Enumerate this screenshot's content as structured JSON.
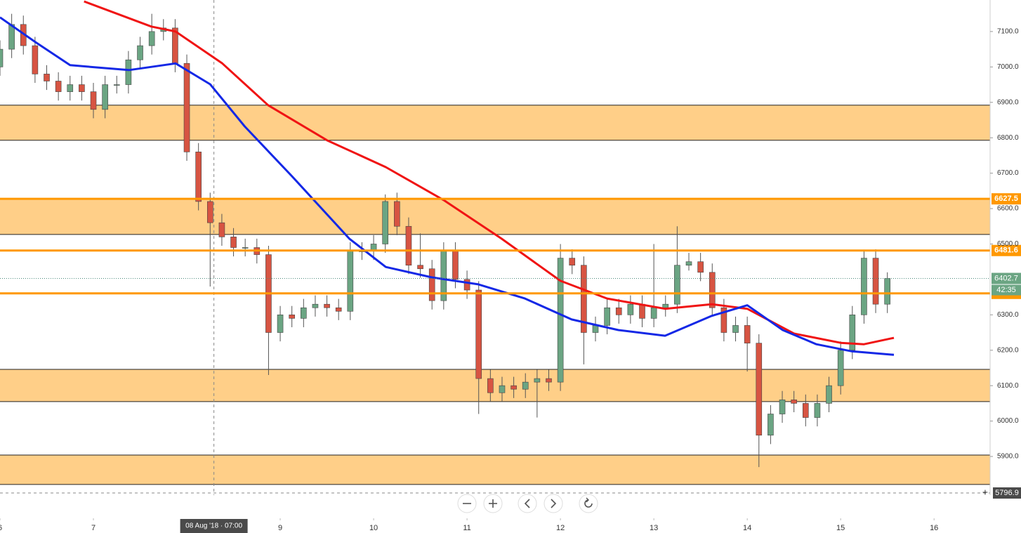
{
  "chart_data": {
    "type": "candlestick",
    "x": [
      6,
      6.125,
      6.25,
      6.375,
      6.5,
      6.625,
      6.75,
      6.875,
      7,
      7.125,
      7.25,
      7.375,
      7.5,
      7.625,
      7.75,
      7.875,
      8,
      8.125,
      8.25,
      8.375,
      8.5,
      8.625,
      8.75,
      8.875,
      9,
      9.125,
      9.25,
      9.375,
      9.5,
      9.625,
      9.75,
      9.875,
      10,
      10.125,
      10.25,
      10.375,
      10.5,
      10.625,
      10.75,
      10.875,
      11,
      11.125,
      11.25,
      11.375,
      11.5,
      11.625,
      11.75,
      11.875,
      12,
      12.125,
      12.25,
      12.375,
      12.5,
      12.625,
      12.75,
      12.875,
      13,
      13.125,
      13.25,
      13.375,
      13.5,
      13.625,
      13.75,
      13.875,
      14,
      14.125,
      14.25,
      14.375,
      14.5,
      14.625,
      14.75,
      14.875,
      15,
      15.125,
      15.25,
      15.375,
      15.5
    ],
    "open": [
      7000,
      7050,
      7120,
      7060,
      6980,
      6960,
      6930,
      6950,
      6930,
      6880,
      6950,
      6950,
      7020,
      7060,
      7100,
      7110,
      7010,
      6760,
      6620,
      6560,
      6520,
      6490,
      6490,
      6470,
      6250,
      6300,
      6290,
      6320,
      6330,
      6320,
      6310,
      6480,
      6480,
      6500,
      6620,
      6550,
      6440,
      6430,
      6340,
      6480,
      6400,
      6370,
      6120,
      6080,
      6100,
      6090,
      6110,
      6120,
      6110,
      6460,
      6440,
      6250,
      6270,
      6320,
      6300,
      6330,
      6290,
      6320,
      6330,
      6440,
      6450,
      6420,
      6320,
      6250,
      6270,
      6220,
      5960,
      6020,
      6060,
      6050,
      6010,
      6050,
      6100,
      6200,
      6300,
      6460,
      6330
    ],
    "high": [
      7075,
      7150,
      7145,
      7085,
      7005,
      6985,
      6975,
      6975,
      6955,
      6975,
      6975,
      7045,
      7085,
      7150,
      7135,
      7135,
      7035,
      6785,
      6645,
      6585,
      6545,
      6515,
      6515,
      6495,
      6325,
      6325,
      6345,
      6355,
      6355,
      6345,
      6505,
      6505,
      6525,
      6640,
      6645,
      6575,
      6530,
      6455,
      6505,
      6505,
      6425,
      6395,
      6145,
      6125,
      6125,
      6135,
      6145,
      6145,
      6500,
      6485,
      6465,
      6295,
      6345,
      6345,
      6355,
      6355,
      6500,
      6355,
      6550,
      6475,
      6475,
      6445,
      6345,
      6295,
      6295,
      6245,
      6045,
      6085,
      6085,
      6075,
      6075,
      6125,
      6225,
      6325,
      6480,
      6485,
      6420
    ],
    "low": [
      6975,
      7025,
      7035,
      6955,
      6935,
      6905,
      6905,
      6905,
      6855,
      6855,
      6925,
      6925,
      6995,
      7035,
      7075,
      6985,
      6735,
      6595,
      6380,
      6495,
      6465,
      6465,
      6445,
      6130,
      6225,
      6265,
      6265,
      6295,
      6295,
      6285,
      6285,
      6455,
      6455,
      6475,
      6525,
      6415,
      6405,
      6315,
      6315,
      6375,
      6345,
      6020,
      6055,
      6055,
      6065,
      6065,
      6010,
      6085,
      6085,
      6415,
      6160,
      6225,
      6245,
      6275,
      6275,
      6265,
      6265,
      6295,
      6305,
      6425,
      6395,
      6295,
      6225,
      6225,
      6140,
      5870,
      5935,
      5995,
      6025,
      5985,
      5985,
      6025,
      6075,
      6175,
      6275,
      6305,
      6305
    ],
    "close": [
      7050,
      7120,
      7060,
      6980,
      6960,
      6930,
      6950,
      6930,
      6880,
      6950,
      6950,
      7020,
      7060,
      7100,
      7110,
      7010,
      6760,
      6620,
      6560,
      6520,
      6490,
      6490,
      6470,
      6250,
      6300,
      6290,
      6320,
      6330,
      6320,
      6310,
      6480,
      6480,
      6500,
      6620,
      6550,
      6440,
      6430,
      6340,
      6480,
      6400,
      6370,
      6120,
      6080,
      6100,
      6090,
      6110,
      6120,
      6110,
      6460,
      6440,
      6250,
      6270,
      6320,
      6300,
      6330,
      6290,
      6320,
      6330,
      6440,
      6450,
      6420,
      6320,
      6250,
      6270,
      6220,
      5960,
      6020,
      6060,
      6050,
      6010,
      6050,
      6100,
      6200,
      6300,
      6460,
      6330,
      6402.7
    ],
    "up_color": "#6ba583",
    "down_color": "#d75442",
    "lines": [
      {
        "color": "#f01414",
        "x": [
          6.9,
          7.62,
          7.88,
          8.38,
          8.87,
          9.5,
          10.13,
          10.75,
          11.37,
          12.0,
          12.5,
          13.12,
          13.62,
          14.0,
          14.5,
          15.0,
          15.25,
          15.57
        ],
        "values": [
          7185,
          7114,
          7100,
          7010,
          6892,
          6793,
          6717,
          6624,
          6515,
          6396,
          6346,
          6317,
          6330,
          6317,
          6247,
          6221,
          6217,
          6235
        ]
      },
      {
        "color": "#1428e6",
        "x": [
          6.0,
          6.38,
          6.75,
          7.38,
          7.88,
          8.25,
          8.62,
          9.12,
          9.74,
          10.13,
          10.62,
          11.12,
          11.62,
          12.12,
          12.62,
          13.12,
          13.62,
          14.0,
          14.38,
          14.74,
          15.12,
          15.57
        ],
        "values": [
          7140,
          7070,
          7005,
          6991,
          7010,
          6951,
          6832,
          6693,
          6515,
          6435,
          6406,
          6386,
          6346,
          6287,
          6257,
          6241,
          6297,
          6327,
          6257,
          6217,
          6197,
          6187
        ]
      }
    ],
    "zones": [
      [
        6793,
        6892
      ],
      [
        6527,
        6628
      ],
      [
        6055,
        6146
      ],
      [
        5821,
        5904
      ]
    ],
    "zone_color": "#ffa726",
    "levels": [
      6627.5,
      6481.6,
      6360.5
    ],
    "level_color": "#ff9800",
    "last_price": 6402.7,
    "countdown": "42:35",
    "crosshair": {
      "x": 8.29,
      "x_label": "08 Aug '18 · 07:00",
      "price": 5796.9
    },
    "xlim": [
      6,
      16.6
    ],
    "xticks": [
      6,
      7,
      9,
      10,
      11,
      12,
      13,
      14,
      15,
      16
    ],
    "ylim": [
      5791,
      7189
    ],
    "yticks": [
      {
        "value": 7100,
        "label": "7100.0"
      },
      {
        "value": 7000,
        "label": "7000.0"
      },
      {
        "value": 6900,
        "label": "6900.0"
      },
      {
        "value": 6800,
        "label": "6800.0"
      },
      {
        "value": 6700,
        "label": "6700.0"
      },
      {
        "value": 6600,
        "label": "6600.0"
      },
      {
        "value": 6500,
        "label": "6500.0"
      },
      {
        "value": 6300,
        "label": "6300.0"
      },
      {
        "value": 6200,
        "label": "6200.0"
      },
      {
        "value": 6100,
        "label": "6100.0"
      },
      {
        "value": 6000,
        "label": "6000.0"
      },
      {
        "value": 5900,
        "label": "5900.0"
      }
    ]
  }
}
